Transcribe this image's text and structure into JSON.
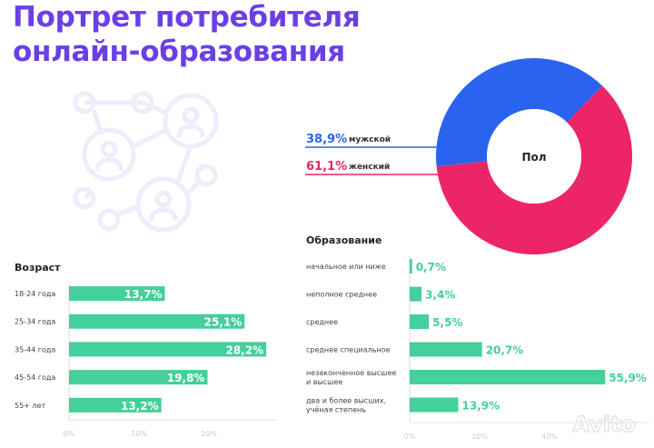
{
  "header": {
    "title_line1": "Портрет потребителя",
    "title_line2": "онлайн-образования"
  },
  "colors": {
    "title": "#6b3fe6",
    "male": "#2a63f0",
    "female": "#ec2566",
    "bar": "#44cf9b",
    "icon": "#eceefa"
  },
  "decor": {
    "icon": "people-network-icon",
    "watermark": "Avito"
  },
  "chart_data": [
    {
      "type": "pie",
      "title": "Пол",
      "donut": true,
      "slices": [
        {
          "name": "мужской",
          "value": 38.9,
          "label": "38,9%",
          "color": "#2a63f0"
        },
        {
          "name": "женский",
          "value": 61.1,
          "label": "61,1%",
          "color": "#ec2566"
        }
      ]
    },
    {
      "type": "bar",
      "orientation": "horizontal",
      "title": "Возраст",
      "categories": [
        "18-24 года",
        "25-34 года",
        "35-44 года",
        "45-54 года",
        "55+ лет"
      ],
      "values": [
        13.7,
        25.1,
        28.2,
        19.8,
        13.2
      ],
      "labels": [
        "13,7%",
        "25,1%",
        "28,2%",
        "19,8%",
        "13,2%"
      ],
      "xticks": [
        "0%",
        "10%",
        "20%"
      ],
      "xlim": [
        0,
        30
      ]
    },
    {
      "type": "bar",
      "orientation": "horizontal",
      "title": "Образование",
      "categories": [
        "начальное или ниже",
        "неполное среднее",
        "среднее",
        "среднее специальное",
        "незаконченное высшее|и высшее",
        "два и более высших,|учёная степень"
      ],
      "values": [
        0.7,
        3.4,
        5.5,
        20.7,
        55.9,
        13.9
      ],
      "labels": [
        "0,7%",
        "3,4%",
        "5,5%",
        "20,7%",
        "55,9%",
        "13,9%"
      ],
      "xticks": [
        "0%",
        "20%",
        "40%"
      ],
      "xlim": [
        0,
        60
      ]
    }
  ]
}
